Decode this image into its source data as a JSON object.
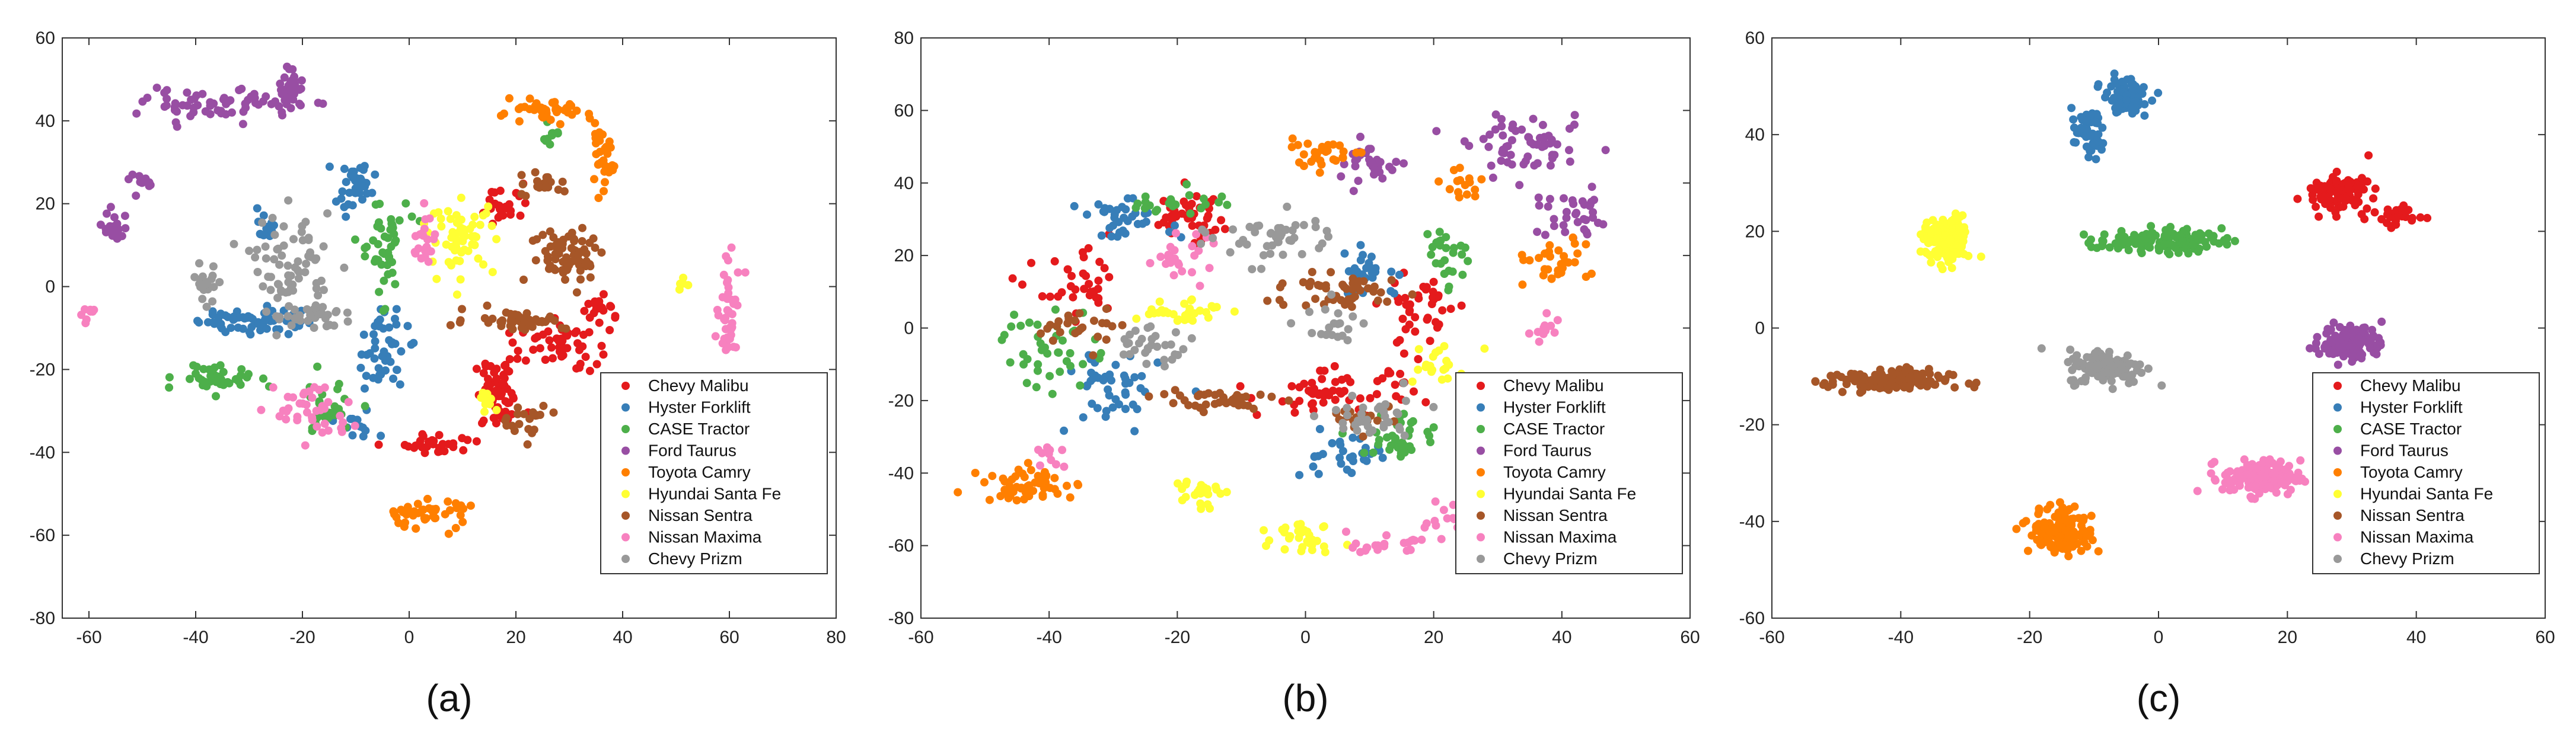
{
  "colors": {
    "Chevy Malibu": "#e41a1c",
    "Hyster Forklift": "#377eb8",
    "CASE Tractor": "#4daf4a",
    "Ford Taurus": "#984ea3",
    "Toyota Camry": "#ff7f00",
    "Hyundai Santa Fe": "#ffff33",
    "Nissan Sentra": "#a65628",
    "Nissan Maxima": "#f781bf",
    "Chevy Prizm": "#999999"
  },
  "chart_data": [
    {
      "type": "scatter",
      "caption": "(a)",
      "xlim": [
        -65,
        80
      ],
      "ylim": [
        -80,
        60
      ],
      "xticks": [
        -60,
        -40,
        -20,
        0,
        20,
        40,
        60,
        80
      ],
      "yticks": [
        -80,
        -60,
        -40,
        -20,
        0,
        20,
        40,
        60
      ],
      "legend_position": "bottom-right",
      "legend": [
        "Chevy Malibu",
        "Hyster Forklift",
        "CASE Tractor",
        "Ford Taurus",
        "Toyota Camry",
        "Hyundai Santa Fe",
        "Nissan Sentra",
        "Nissan Maxima",
        "Chevy Prizm"
      ],
      "series": [
        {
          "name": "Chevy Malibu",
          "clusters": [
            {
              "cx": 17,
              "cy": -26,
              "sx": 4,
              "sy": 7,
              "n": 60
            },
            {
              "cx": 28,
              "cy": -14,
              "sx": 6,
              "sy": 5,
              "n": 50
            },
            {
              "cx": 6,
              "cy": -38,
              "sx": 6,
              "sy": 2,
              "n": 30
            },
            {
              "cx": 36,
              "cy": -5,
              "sx": 3,
              "sy": 3,
              "n": 20
            },
            {
              "cx": 18,
              "cy": 20,
              "sx": 4,
              "sy": 4,
              "n": 25
            }
          ]
        },
        {
          "name": "Hyster Forklift",
          "clusters": [
            {
              "cx": -30,
              "cy": -8,
              "sx": 8,
              "sy": 3,
              "n": 60
            },
            {
              "cx": -10,
              "cy": 24,
              "sx": 3,
              "sy": 5,
              "n": 35
            },
            {
              "cx": -5,
              "cy": -15,
              "sx": 4,
              "sy": 8,
              "n": 45
            },
            {
              "cx": -27,
              "cy": 14,
              "sx": 2,
              "sy": 3,
              "n": 15
            },
            {
              "cx": -10,
              "cy": -34,
              "sx": 3,
              "sy": 3,
              "n": 15
            }
          ]
        },
        {
          "name": "CASE Tractor",
          "clusters": [
            {
              "cx": -36,
              "cy": -22,
              "sx": 6,
              "sy": 3,
              "n": 40
            },
            {
              "cx": -5,
              "cy": 10,
              "sx": 4,
              "sy": 10,
              "n": 45
            },
            {
              "cx": -16,
              "cy": -30,
              "sx": 5,
              "sy": 6,
              "n": 30
            },
            {
              "cx": 27,
              "cy": 37,
              "sx": 2,
              "sy": 2,
              "n": 10
            }
          ]
        },
        {
          "name": "Ford Taurus",
          "clusters": [
            {
              "cx": -35,
              "cy": 44,
              "sx": 12,
              "sy": 3,
              "n": 70
            },
            {
              "cx": -22,
              "cy": 48,
              "sx": 2,
              "sy": 4,
              "n": 25
            },
            {
              "cx": -55,
              "cy": 14,
              "sx": 2,
              "sy": 4,
              "n": 25
            },
            {
              "cx": -50,
              "cy": 25,
              "sx": 2,
              "sy": 2,
              "n": 10
            }
          ]
        },
        {
          "name": "Toyota Camry",
          "clusters": [
            {
              "cx": 25,
              "cy": 42,
              "sx": 7,
              "sy": 2,
              "n": 40
            },
            {
              "cx": 36,
              "cy": 30,
              "sx": 2,
              "sy": 6,
              "n": 30
            },
            {
              "cx": 3,
              "cy": -55,
              "sx": 7,
              "sy": 3,
              "n": 45
            }
          ]
        },
        {
          "name": "Hyundai Santa Fe",
          "clusters": [
            {
              "cx": 10,
              "cy": 12,
              "sx": 5,
              "sy": 7,
              "n": 60
            },
            {
              "cx": 15,
              "cy": -28,
              "sx": 2,
              "sy": 2,
              "n": 10
            },
            {
              "cx": 51,
              "cy": 0,
              "sx": 1,
              "sy": 2,
              "n": 5
            }
          ]
        },
        {
          "name": "Nissan Sentra",
          "clusters": [
            {
              "cx": 30,
              "cy": 8,
              "sx": 6,
              "sy": 6,
              "n": 70
            },
            {
              "cx": 20,
              "cy": -8,
              "sx": 8,
              "sy": 2,
              "n": 45
            },
            {
              "cx": 22,
              "cy": -32,
              "sx": 4,
              "sy": 3,
              "n": 20
            },
            {
              "cx": 25,
              "cy": 25,
              "sx": 4,
              "sy": 3,
              "n": 20
            }
          ]
        },
        {
          "name": "Nissan Maxima",
          "clusters": [
            {
              "cx": 60,
              "cy": -7,
              "sx": 2,
              "sy": 10,
              "n": 45
            },
            {
              "cx": -18,
              "cy": -30,
              "sx": 6,
              "sy": 6,
              "n": 40
            },
            {
              "cx": 3,
              "cy": 10,
              "sx": 2,
              "sy": 8,
              "n": 25
            },
            {
              "cx": -60,
              "cy": -7,
              "sx": 1,
              "sy": 2,
              "n": 8
            }
          ]
        },
        {
          "name": "Chevy Prizm",
          "clusters": [
            {
              "cx": -22,
              "cy": 5,
              "sx": 6,
              "sy": 10,
              "n": 70
            },
            {
              "cx": -18,
              "cy": -7,
              "sx": 7,
              "sy": 2,
              "n": 30
            },
            {
              "cx": -38,
              "cy": 0,
              "sx": 2,
              "sy": 5,
              "n": 20
            }
          ]
        }
      ]
    },
    {
      "type": "scatter",
      "caption": "(b)",
      "xlim": [
        -60,
        60
      ],
      "ylim": [
        -80,
        80
      ],
      "xticks": [
        -60,
        -40,
        -20,
        0,
        20,
        40,
        60
      ],
      "yticks": [
        -80,
        -60,
        -40,
        -20,
        0,
        20,
        40,
        60,
        80
      ],
      "legend_position": "bottom-right",
      "legend": [
        "Chevy Malibu",
        "Hyster Forklift",
        "CASE Tractor",
        "Ford Taurus",
        "Toyota Camry",
        "Hyundai Santa Fe",
        "Nissan Sentra",
        "Nissan Maxima",
        "Chevy Prizm"
      ],
      "series": [
        {
          "name": "Chevy Malibu",
          "clusters": [
            {
              "cx": 5,
              "cy": -18,
              "sx": 10,
              "sy": 5,
              "n": 60
            },
            {
              "cx": -18,
              "cy": 30,
              "sx": 5,
              "sy": 6,
              "n": 45
            },
            {
              "cx": -35,
              "cy": 10,
              "sx": 6,
              "sy": 8,
              "n": 35
            },
            {
              "cx": 18,
              "cy": 5,
              "sx": 5,
              "sy": 10,
              "n": 40
            }
          ]
        },
        {
          "name": "Hyster Forklift",
          "clusters": [
            {
              "cx": -30,
              "cy": -18,
              "sx": 6,
              "sy": 10,
              "n": 45
            },
            {
              "cx": 5,
              "cy": -35,
              "sx": 6,
              "sy": 5,
              "n": 30
            },
            {
              "cx": -28,
              "cy": 30,
              "sx": 6,
              "sy": 4,
              "n": 35
            },
            {
              "cx": 10,
              "cy": 15,
              "sx": 5,
              "sy": 6,
              "n": 30
            }
          ]
        },
        {
          "name": "CASE Tractor",
          "clusters": [
            {
              "cx": -40,
              "cy": -5,
              "sx": 6,
              "sy": 10,
              "n": 40
            },
            {
              "cx": 15,
              "cy": -30,
              "sx": 5,
              "sy": 6,
              "n": 35
            },
            {
              "cx": -20,
              "cy": 35,
              "sx": 6,
              "sy": 3,
              "n": 25
            },
            {
              "cx": 22,
              "cy": 20,
              "sx": 3,
              "sy": 8,
              "n": 25
            }
          ]
        },
        {
          "name": "Ford Taurus",
          "clusters": [
            {
              "cx": 35,
              "cy": 50,
              "sx": 8,
              "sy": 6,
              "n": 60
            },
            {
              "cx": 42,
              "cy": 30,
              "sx": 5,
              "sy": 6,
              "n": 35
            },
            {
              "cx": 10,
              "cy": 45,
              "sx": 5,
              "sy": 5,
              "n": 30
            }
          ]
        },
        {
          "name": "Toyota Camry",
          "clusters": [
            {
              "cx": -43,
              "cy": -43,
              "sx": 6,
              "sy": 4,
              "n": 55
            },
            {
              "cx": 38,
              "cy": 18,
              "sx": 5,
              "sy": 5,
              "n": 30
            },
            {
              "cx": 2,
              "cy": 48,
              "sx": 6,
              "sy": 3,
              "n": 30
            },
            {
              "cx": 25,
              "cy": 40,
              "sx": 3,
              "sy": 4,
              "n": 15
            }
          ]
        },
        {
          "name": "Hyundai Santa Fe",
          "clusters": [
            {
              "cx": 0,
              "cy": -57,
              "sx": 4,
              "sy": 4,
              "n": 30
            },
            {
              "cx": -17,
              "cy": -45,
              "sx": 3,
              "sy": 4,
              "n": 25
            },
            {
              "cx": -20,
              "cy": 5,
              "sx": 6,
              "sy": 3,
              "n": 30
            },
            {
              "cx": 20,
              "cy": -10,
              "sx": 4,
              "sy": 6,
              "n": 20
            }
          ]
        },
        {
          "name": "Nissan Sentra",
          "clusters": [
            {
              "cx": -15,
              "cy": -20,
              "sx": 8,
              "sy": 3,
              "n": 40
            },
            {
              "cx": 5,
              "cy": 10,
              "sx": 10,
              "sy": 4,
              "n": 45
            },
            {
              "cx": -35,
              "cy": 0,
              "sx": 5,
              "sy": 5,
              "n": 25
            },
            {
              "cx": 10,
              "cy": -25,
              "sx": 5,
              "sy": 3,
              "n": 25
            }
          ]
        },
        {
          "name": "Nissan Maxima",
          "clusters": [
            {
              "cx": 25,
              "cy": -55,
              "sx": 5,
              "sy": 4,
              "n": 35
            },
            {
              "cx": 12,
              "cy": -60,
              "sx": 4,
              "sy": 2,
              "n": 20
            },
            {
              "cx": -20,
              "cy": 20,
              "sx": 4,
              "sy": 5,
              "n": 25
            },
            {
              "cx": 38,
              "cy": 0,
              "sx": 3,
              "sy": 3,
              "n": 12
            },
            {
              "cx": -40,
              "cy": -35,
              "sx": 2,
              "sy": 3,
              "n": 10
            }
          ]
        },
        {
          "name": "Chevy Prizm",
          "clusters": [
            {
              "cx": -5,
              "cy": 25,
              "sx": 8,
              "sy": 6,
              "n": 45
            },
            {
              "cx": 10,
              "cy": -25,
              "sx": 6,
              "sy": 6,
              "n": 35
            },
            {
              "cx": -25,
              "cy": -5,
              "sx": 6,
              "sy": 4,
              "n": 30
            },
            {
              "cx": 5,
              "cy": 0,
              "sx": 4,
              "sy": 6,
              "n": 20
            }
          ]
        }
      ]
    },
    {
      "type": "scatter",
      "caption": "(c)",
      "xlim": [
        -60,
        60
      ],
      "ylim": [
        -60,
        60
      ],
      "xticks": [
        -60,
        -40,
        -20,
        0,
        20,
        40,
        60
      ],
      "yticks": [
        -60,
        -40,
        -20,
        0,
        20,
        40,
        60
      ],
      "legend_position": "bottom-right",
      "legend": [
        "Chevy Malibu",
        "Hyster Forklift",
        "CASE Tractor",
        "Ford Taurus",
        "Toyota Camry",
        "Hyundai Santa Fe",
        "Nissan Sentra",
        "Nissan Maxima",
        "Chevy Prizm"
      ],
      "series": [
        {
          "name": "Chevy Malibu",
          "clusters": [
            {
              "cx": 28,
              "cy": 28,
              "sx": 4,
              "sy": 3,
              "n": 110
            },
            {
              "cx": 37,
              "cy": 23,
              "sx": 3,
              "sy": 2,
              "n": 35
            }
          ]
        },
        {
          "name": "Hyster Forklift",
          "clusters": [
            {
              "cx": -5,
              "cy": 48,
              "sx": 3,
              "sy": 3,
              "n": 80
            },
            {
              "cx": -11,
              "cy": 40,
              "sx": 2,
              "sy": 4,
              "n": 45
            }
          ]
        },
        {
          "name": "CASE Tractor",
          "clusters": [
            {
              "cx": 0,
              "cy": 18,
              "sx": 8,
              "sy": 2,
              "n": 130
            }
          ]
        },
        {
          "name": "Ford Taurus",
          "clusters": [
            {
              "cx": 30,
              "cy": -3,
              "sx": 4,
              "sy": 3,
              "n": 120
            }
          ]
        },
        {
          "name": "Toyota Camry",
          "clusters": [
            {
              "cx": -15,
              "cy": -42,
              "sx": 4,
              "sy": 4,
              "n": 140
            }
          ]
        },
        {
          "name": "Hyundai Santa Fe",
          "clusters": [
            {
              "cx": -33,
              "cy": 18,
              "sx": 3,
              "sy": 4,
              "n": 130
            }
          ]
        },
        {
          "name": "Nissan Sentra",
          "clusters": [
            {
              "cx": -42,
              "cy": -11,
              "sx": 8,
              "sy": 2,
              "n": 130
            }
          ]
        },
        {
          "name": "Nissan Maxima",
          "clusters": [
            {
              "cx": 16,
              "cy": -31,
              "sx": 5,
              "sy": 3,
              "n": 150
            }
          ]
        },
        {
          "name": "Chevy Prizm",
          "clusters": [
            {
              "cx": -8,
              "cy": -8,
              "sx": 5,
              "sy": 3,
              "n": 130
            }
          ]
        }
      ]
    }
  ]
}
